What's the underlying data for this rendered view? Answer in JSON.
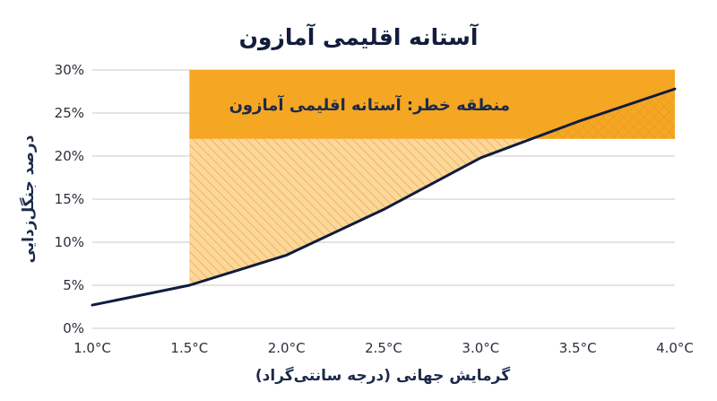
{
  "colors": {
    "zone": "#f5a623",
    "zone_light": "#fbd79a",
    "line": "#0f1c3f",
    "grid": "#c9c9c9",
    "text": "#1b2a4a"
  },
  "chart_data": {
    "type": "line",
    "title": "آستانه اقلیمی آمازون",
    "xlabel": "گرمایش جهانی (درجه سانتی‌گراد)",
    "ylabel": "درصد جنگل‌زدایی",
    "xlim": [
      1.0,
      4.0
    ],
    "ylim": [
      0,
      30
    ],
    "x_ticks": [
      "1.0°C",
      "1.5°C",
      "2.0°C",
      "2.5°C",
      "3.0°C",
      "3.5°C",
      "4.0°C"
    ],
    "y_ticks": [
      "0%",
      "5%",
      "10%",
      "15%",
      "20%",
      "25%",
      "30%"
    ],
    "grid": true,
    "series": [
      {
        "x": [
          1.0,
          1.5,
          2.0,
          2.5,
          3.0,
          3.5,
          4.0
        ],
        "y": [
          2.7,
          5.0,
          8.5,
          13.8,
          19.8,
          24.0,
          27.8
        ]
      }
    ],
    "annotations": [
      {
        "type": "threshold-zone",
        "text": "منطقه خطر: آستانه اقلیمی آمازون",
        "x_from": 1.5,
        "x_to": 4.0,
        "y_from": 22,
        "y_to": 30,
        "hatched_below_y": 22
      }
    ]
  }
}
